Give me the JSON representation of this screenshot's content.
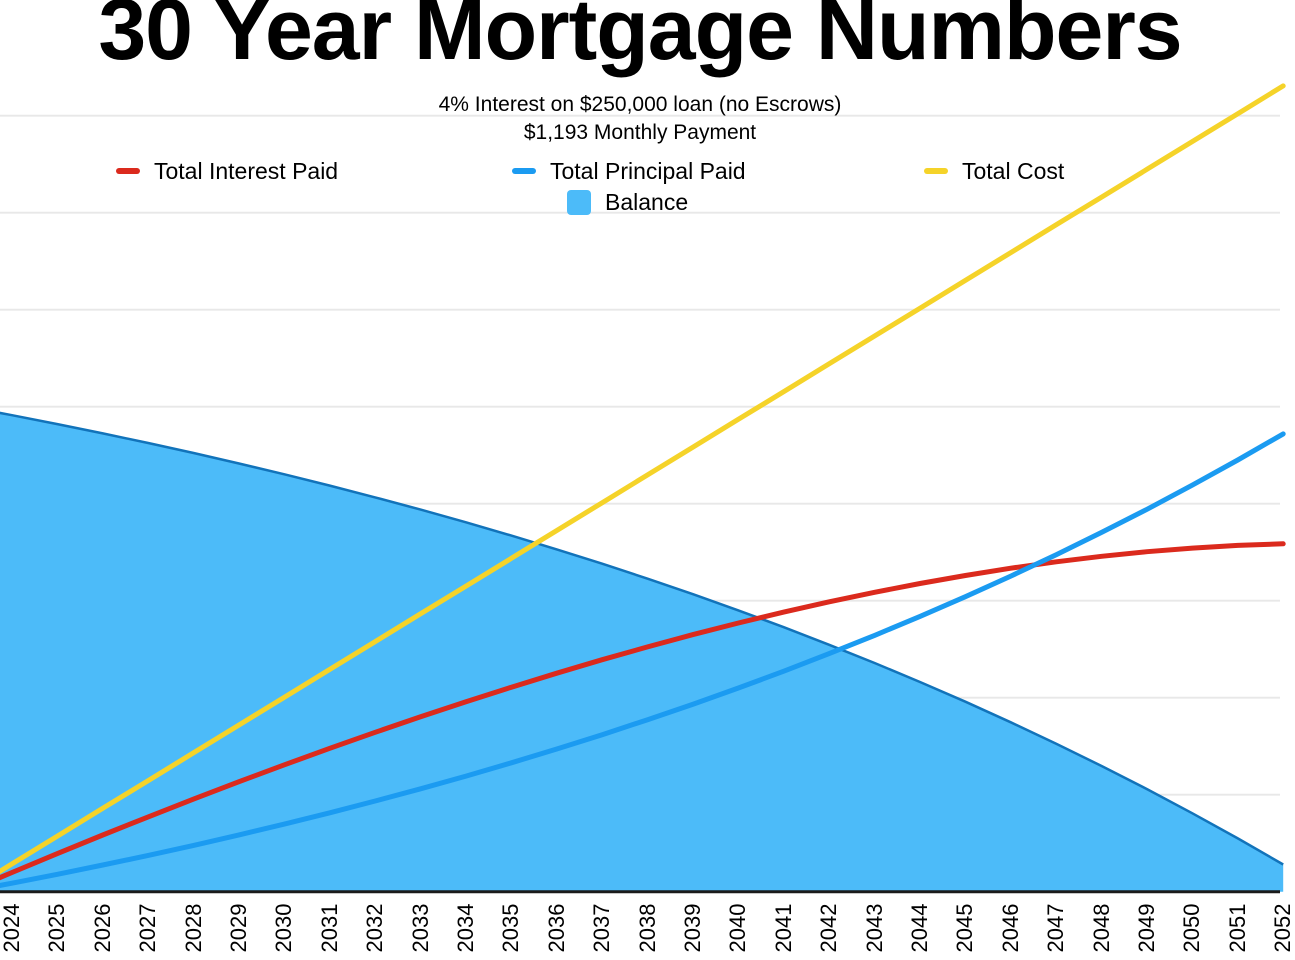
{
  "title": "30 Year Mortgage Numbers",
  "subtitle_line1": "4% Interest on $250,000 loan (no Escrows)",
  "subtitle_line2": "$1,193 Monthly Payment",
  "colors": {
    "background": "#ffffff",
    "gridline": "#e8e8e8",
    "axis": "#1b1b1b",
    "interest_red": "#db2a1d",
    "principal_blue": "#1b9bf1",
    "cost_yellow": "#f5d329",
    "balance_fill": "#4cbbf9",
    "balance_edge": "#1273ba"
  },
  "legend": {
    "items": [
      {
        "label": "Total Interest Paid",
        "color": "#db2a1d",
        "swatch": "dash"
      },
      {
        "label": "Total Principal Paid",
        "color": "#1b9bf1",
        "swatch": "dash"
      },
      {
        "label": "Total Cost",
        "color": "#f5d329",
        "swatch": "dash"
      },
      {
        "label": "Balance",
        "color": "#4cbbf9",
        "swatch": "square"
      }
    ]
  },
  "chart_data": {
    "type": "combo",
    "title": "30 Year Mortgage Numbers",
    "loan_amount": 250000,
    "categories": [
      "2024",
      "2025",
      "2026",
      "2027",
      "2028",
      "2029",
      "2030",
      "2031",
      "2032",
      "2033",
      "2034",
      "2035",
      "2036",
      "2037",
      "2038",
      "2039",
      "2040",
      "2041",
      "2042",
      "2043",
      "2044",
      "2045",
      "2046",
      "2047",
      "2048",
      "2049",
      "2050",
      "2051",
      "2052"
    ],
    "series": [
      {
        "name": "Total Interest Paid",
        "type": "line",
        "color": "#db2a1d",
        "start_value": 0,
        "values": [
          9920,
          19661,
          29214,
          38575,
          47732,
          56680,
          65407,
          73908,
          82171,
          90187,
          97945,
          105437,
          112650,
          119573,
          126195,
          132504,
          138485,
          144128,
          149416,
          154337,
          158874,
          163012,
          166737,
          170029,
          172872,
          175247,
          177135,
          178516,
          179350
        ]
      },
      {
        "name": "Total Principal Paid",
        "type": "line",
        "color": "#1b9bf1",
        "start_value": 0,
        "values": [
          4402,
          8984,
          13753,
          18715,
          23880,
          29255,
          34850,
          40672,
          46731,
          53038,
          59602,
          66433,
          73542,
          80941,
          88642,
          96656,
          104997,
          113677,
          122711,
          132113,
          141898,
          152082,
          162680,
          173710,
          185190,
          197137,
          209572,
          222513,
          236002
        ]
      },
      {
        "name": "Total Cost",
        "type": "line",
        "color": "#f5d329",
        "start_value": 0,
        "values": [
          14322,
          28645,
          42967,
          57290,
          71612,
          85935,
          100257,
          114580,
          128902,
          143225,
          157547,
          171870,
          186192,
          200515,
          214837,
          229160,
          243482,
          257805,
          272127,
          286450,
          300772,
          315094,
          329417,
          343739,
          358062,
          372384,
          386707,
          401029,
          415352
        ]
      },
      {
        "name": "Balance",
        "type": "area",
        "color": "#4cbbf9",
        "stroke": "#1273ba",
        "start_value": 250000,
        "values": [
          245598,
          241016,
          236247,
          231285,
          226120,
          220745,
          215150,
          209328,
          203269,
          196962,
          190398,
          183567,
          176458,
          169059,
          161358,
          153344,
          145003,
          136323,
          127289,
          117887,
          108102,
          97918,
          87320,
          76290,
          64810,
          52863,
          40428,
          27487,
          13998
        ]
      }
    ],
    "y_axis": {
      "min": 0,
      "gridline_step": 50000,
      "visible_max": 400000,
      "labels_visible": false
    },
    "x_axis": {
      "tick_rotation_deg": -90,
      "first_label": "2024",
      "last_label": "2052"
    },
    "legend_position": "top",
    "grid": "horizontal"
  }
}
